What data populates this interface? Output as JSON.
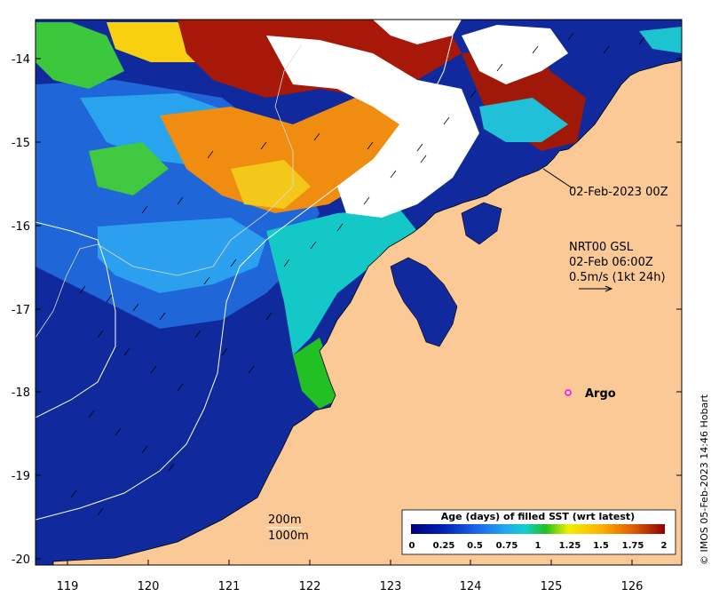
{
  "map": {
    "lon_ticks": [
      "119",
      "120",
      "121",
      "122",
      "123",
      "124",
      "125",
      "126"
    ],
    "lat_ticks": [
      "-14",
      "-15",
      "-16",
      "-17",
      "-18",
      "-19",
      "-20"
    ],
    "annotations": {
      "track_date": "02-Feb-2023 00Z",
      "current_source": "NRT00 GSL",
      "current_time": "02-Feb 06:00Z",
      "current_scale": "0.5m/s (1kt 24h)",
      "argo_label": "Argo"
    },
    "contours": {
      "c200": "200m",
      "c1000": "1000m"
    },
    "colorbar": {
      "title": "Age (days) of filled SST (wrt latest)",
      "tick_labels": [
        "0",
        "0.25",
        "0.5",
        "0.75",
        "1",
        "1.25",
        "1.5",
        "1.75",
        "2"
      ],
      "colors": [
        "#00007f",
        "#0029c5",
        "#1a7af0",
        "#22b3f0",
        "#10d8c0",
        "#20d020",
        "#ffe000",
        "#ffa000",
        "#e06000",
        "#a00000"
      ]
    },
    "credit": "© IMOS 05-Feb-2023 14:46 Hobart",
    "colors": {
      "land": "#fbc996",
      "argo_marker": "#ff00ff",
      "deep_blue": "#1530a8",
      "mid_blue": "#2070e0",
      "light_blue": "#30a8f0"
    }
  }
}
